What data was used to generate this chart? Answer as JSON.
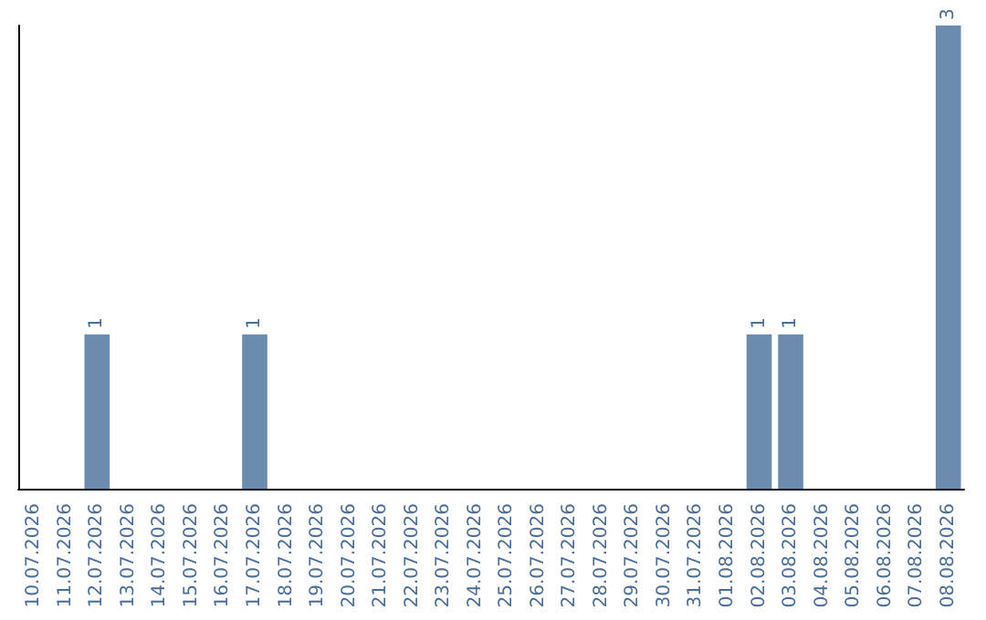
{
  "chart_data": {
    "type": "bar",
    "categories": [
      "10.07.2026",
      "11.07.2026",
      "12.07.2026",
      "13.07.2026",
      "14.07.2026",
      "15.07.2026",
      "16.07.2026",
      "17.07.2026",
      "18.07.2026",
      "19.07.2026",
      "20.07.2026",
      "21.07.2026",
      "22.07.2026",
      "23.07.2026",
      "24.07.2026",
      "25.07.2026",
      "26.07.2026",
      "27.07.2026",
      "28.07.2026",
      "29.07.2026",
      "30.07.2026",
      "31.07.2026",
      "01.08.2026",
      "02.08.2026",
      "03.08.2026",
      "04.08.2026",
      "05.08.2026",
      "06.08.2026",
      "07.08.2026",
      "08.08.2026"
    ],
    "values": [
      0,
      0,
      1,
      0,
      0,
      0,
      0,
      1,
      0,
      0,
      0,
      0,
      0,
      0,
      0,
      0,
      0,
      0,
      0,
      0,
      0,
      0,
      0,
      1,
      1,
      0,
      0,
      0,
      0,
      3
    ],
    "value_labels": [
      null,
      null,
      "1",
      null,
      null,
      null,
      null,
      "1",
      null,
      null,
      null,
      null,
      null,
      null,
      null,
      null,
      null,
      null,
      null,
      null,
      null,
      null,
      null,
      "1",
      "1",
      null,
      null,
      null,
      null,
      "3"
    ],
    "color": "#6b8cae",
    "grid": false,
    "tick_labels": "x"
  }
}
